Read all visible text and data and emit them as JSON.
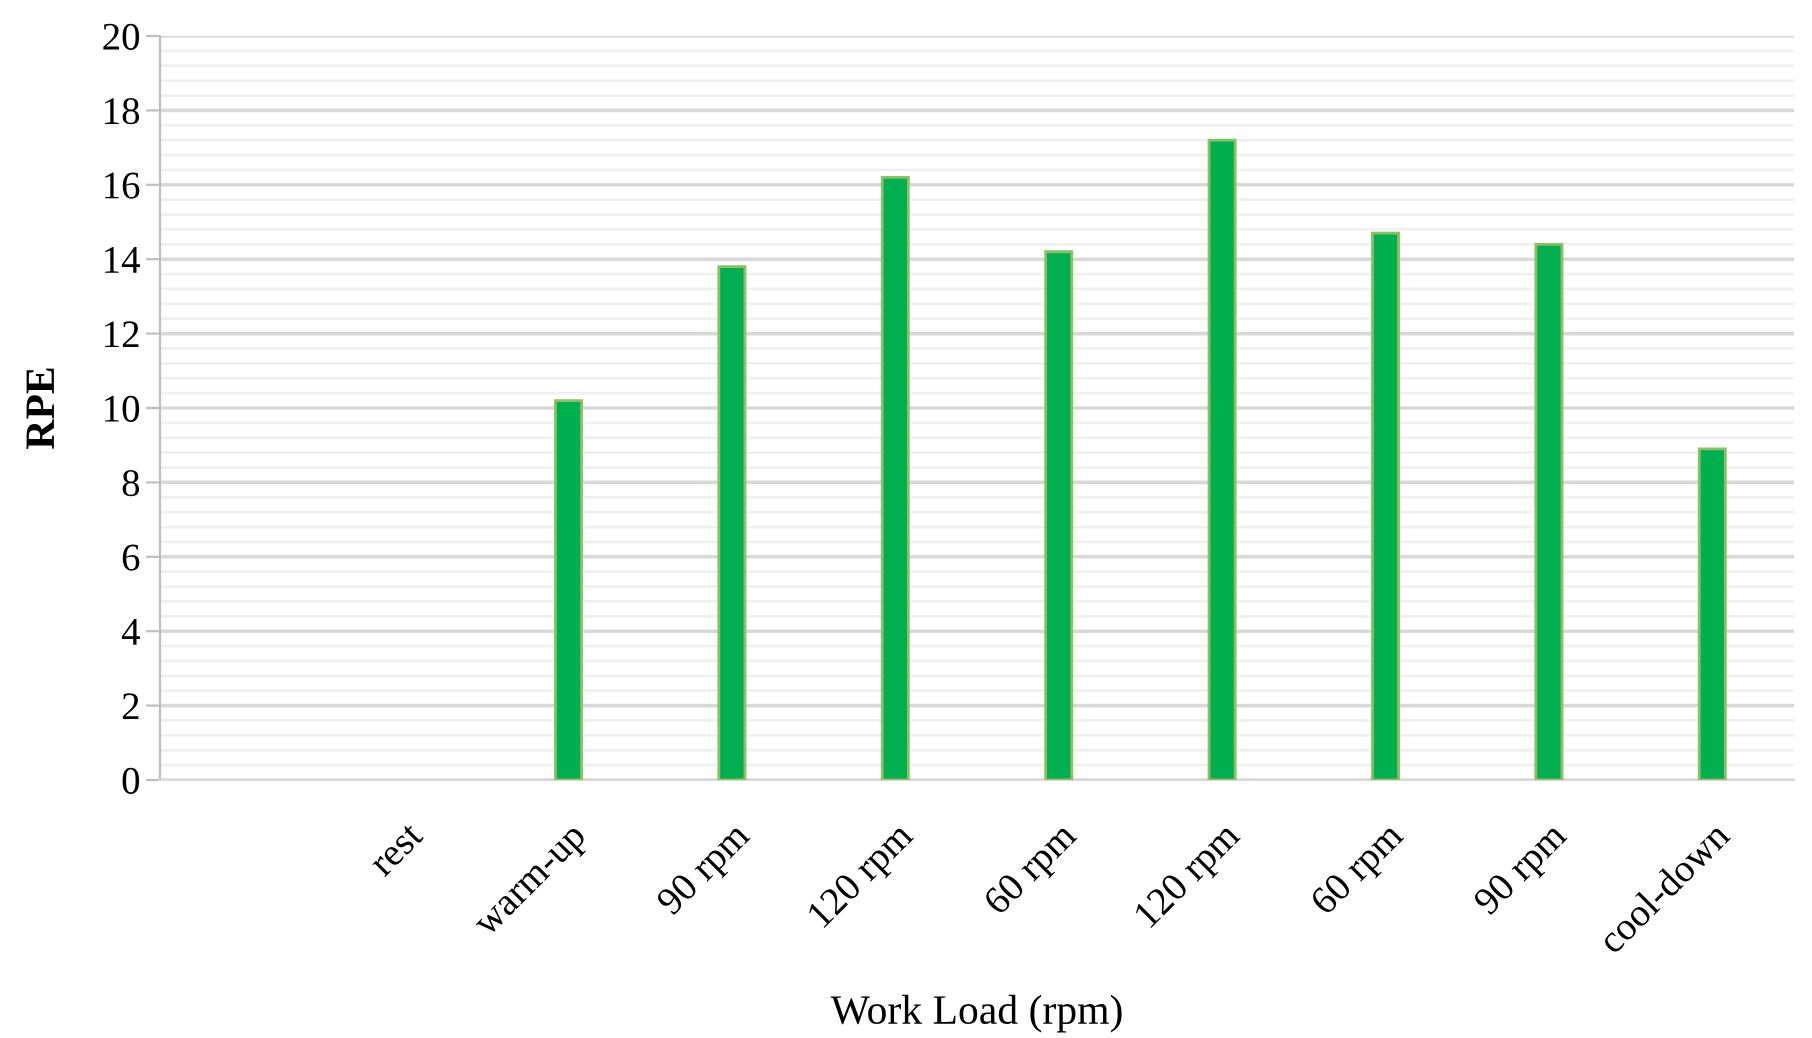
{
  "chart_data": {
    "type": "bar",
    "xlabel": "Work Load (rpm)",
    "ylabel": "RPE",
    "categories": [
      null,
      "rest",
      "warm-up",
      "90 rpm",
      "120 rpm",
      "60 rpm",
      "120 rpm",
      "60 rpm",
      "90 rpm",
      "cool-down"
    ],
    "series": [
      {
        "color": "#00b050",
        "values": [
          null,
          null,
          10.2,
          13.8,
          16.2,
          14.2,
          17.2,
          14.7,
          14.4,
          8.9
        ]
      }
    ],
    "ylim": [
      0,
      20
    ],
    "yticks": [
      0,
      {
        "value": 0.4,
        "label": null
      },
      {
        "value": 0.8,
        "label": null
      },
      {
        "value": 1.2,
        "label": null
      },
      {
        "value": 1.6,
        "label": null
      },
      2,
      {
        "value": 2.4,
        "label": null
      },
      {
        "value": 2.8,
        "label": null
      },
      {
        "value": 3.2,
        "label": null
      },
      {
        "value": 3.6,
        "label": null
      },
      4,
      {
        "value": 4.4,
        "label": null
      },
      {
        "value": 4.8,
        "label": null
      },
      {
        "value": 5.2,
        "label": null
      },
      {
        "value": 5.6,
        "label": null
      },
      6,
      {
        "value": 6.4,
        "label": null
      },
      {
        "value": 6.8,
        "label": null
      },
      {
        "value": 7.2,
        "label": null
      },
      {
        "value": 7.6,
        "label": null
      },
      8,
      {
        "value": 8.4,
        "label": null
      },
      {
        "value": 8.8,
        "label": null
      },
      {
        "value": 9.2,
        "label": null
      },
      {
        "value": 9.6,
        "label": null
      },
      10,
      {
        "value": 10.4,
        "label": null
      },
      {
        "value": 10.8,
        "label": null
      },
      {
        "value": 11.2,
        "label": null
      },
      {
        "value": 11.6,
        "label": null
      },
      12,
      {
        "value": 12.4,
        "label": null
      },
      {
        "value": 12.8,
        "label": null
      },
      {
        "value": 13.2,
        "label": null
      },
      {
        "value": 13.6,
        "label": null
      },
      14,
      {
        "value": 14.4,
        "label": null
      },
      {
        "value": 14.8,
        "label": null
      },
      {
        "value": 15.2,
        "label": null
      },
      {
        "value": 15.6,
        "label": null
      },
      16,
      {
        "value": 16.4,
        "label": null
      },
      {
        "value": 16.8,
        "label": null
      },
      {
        "value": 17.2,
        "label": null
      },
      {
        "value": 17.6,
        "label": null
      },
      18,
      {
        "value": 18.4,
        "label": null
      },
      {
        "value": 18.8,
        "label": null
      },
      {
        "value": 19.2,
        "label": null
      },
      {
        "value": 19.6,
        "label": null
      },
      20
    ],
    "grid": "y"
  }
}
